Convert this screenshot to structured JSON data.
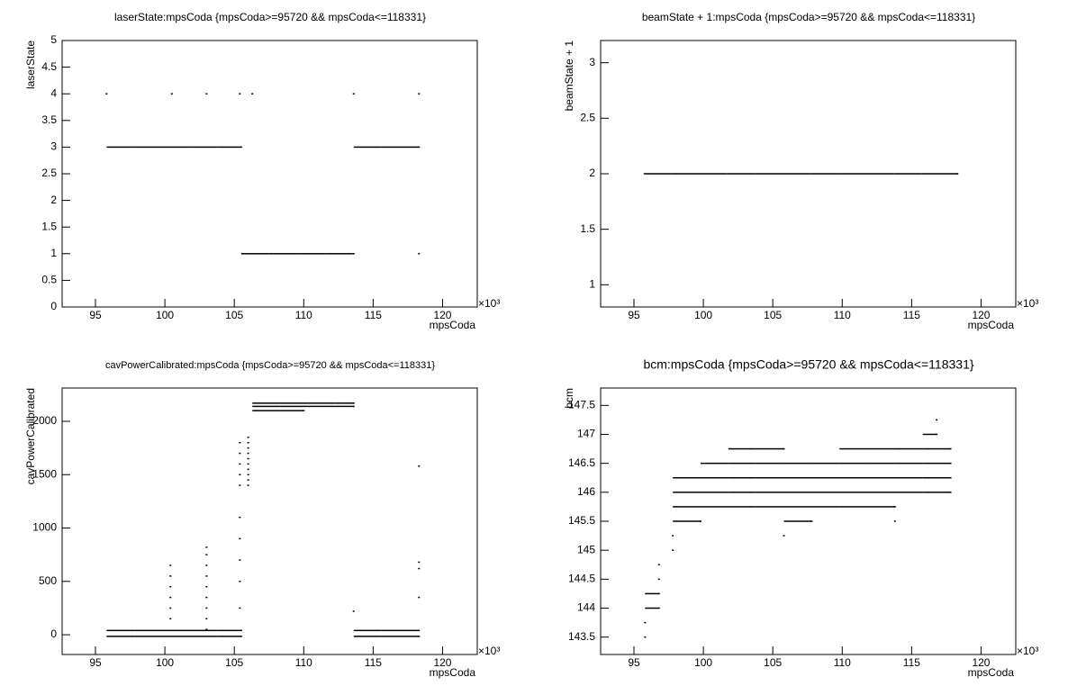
{
  "chart_data": [
    {
      "type": "scatter",
      "title": "laserState:mpsCoda {mpsCoda>=95720 && mpsCoda<=118331}",
      "x_label": "mpsCoda",
      "y_label": "laserState",
      "x_exponent": "×10³",
      "color": "#000000",
      "xlim": [
        92.6,
        122.5
      ],
      "xticks": [
        95,
        100,
        105,
        110,
        115,
        120
      ],
      "ylim": [
        0,
        5
      ],
      "yticks": [
        0,
        0.5,
        1,
        1.5,
        2,
        2.5,
        3,
        3.5,
        4,
        4.5,
        5
      ],
      "x": [
        95.8,
        97.8,
        99.8,
        101.8,
        103.8,
        105.5,
        105.5,
        107.5,
        109.5,
        111.5,
        113.5,
        113.6,
        113.6,
        115.6,
        117.6,
        118.3,
        95.8,
        100.5,
        103,
        105.4,
        118.3,
        106.3,
        113.6,
        118.3
      ],
      "values": [
        3,
        3,
        3,
        3,
        3,
        3,
        1,
        1,
        1,
        1,
        1,
        1,
        3,
        3,
        3,
        3,
        4,
        4,
        4,
        4,
        1,
        4,
        4,
        4
      ]
    },
    {
      "type": "scatter",
      "title": "beamState + 1:mpsCoda {mpsCoda>=95720 && mpsCoda<=118331}",
      "x_label": "mpsCoda",
      "y_label": "beamState + 1",
      "x_exponent": "×10³",
      "color": "#000000",
      "xlim": [
        92.6,
        122.5
      ],
      "xticks": [
        95,
        100,
        105,
        110,
        115,
        120
      ],
      "ylim": [
        0.8,
        3.2
      ],
      "yticks": [
        1,
        1.5,
        2,
        2.5,
        3
      ],
      "x": [
        95.7,
        97.7,
        99.7,
        101.7,
        103.7,
        105.7,
        107.7,
        109.7,
        111.7,
        113.7,
        115.7,
        117.7,
        118.3
      ],
      "values": [
        2,
        2,
        2,
        2,
        2,
        2,
        2,
        2,
        2,
        2,
        2,
        2,
        2
      ]
    },
    {
      "type": "scatter",
      "title": "cavPowerCalibrated:mpsCoda {mpsCoda>=95720 && mpsCoda<=118331}",
      "x_label": "mpsCoda",
      "y_label": "cavPowerCalibrated",
      "x_exponent": "×10³",
      "color": "#000000",
      "xlim": [
        92.6,
        122.5
      ],
      "xticks": [
        95,
        100,
        105,
        110,
        115,
        120
      ],
      "ylim": [
        -185,
        2312
      ],
      "yticks": [
        0,
        500,
        1000,
        1500,
        2000
      ],
      "x": [
        95.8,
        97.8,
        99.8,
        101.8,
        103.8,
        105.5,
        95.8,
        97.8,
        99.8,
        101.8,
        103.8,
        105.5,
        113.6,
        115.6,
        117.6,
        118.3,
        113.6,
        115.6,
        117.6,
        118.3,
        106.3,
        108.3,
        110.3,
        112.3,
        113.6,
        106.3,
        108.3,
        110.3,
        112.3,
        113.6,
        106.3,
        108.3,
        110,
        100.4,
        100.4,
        100.4,
        100.4,
        100.4,
        100.4,
        103,
        103,
        103,
        103,
        103,
        103,
        103,
        103,
        103,
        105.4,
        105.4,
        105.4,
        105.4,
        105.4,
        105.4,
        105.4,
        105.4,
        105.4,
        105.4,
        106,
        106,
        106,
        106,
        106,
        106,
        106,
        106,
        106,
        106,
        113.6,
        118.3,
        118.3,
        118.3,
        118.3
      ],
      "values": [
        40,
        40,
        40,
        40,
        40,
        40,
        -15,
        -15,
        -15,
        -15,
        -15,
        -15,
        40,
        40,
        40,
        40,
        -15,
        -15,
        -15,
        -15,
        2170,
        2170,
        2170,
        2170,
        2170,
        2140,
        2140,
        2140,
        2140,
        2140,
        2100,
        2100,
        2100,
        150,
        250,
        350,
        450,
        550,
        650,
        50,
        150,
        250,
        350,
        450,
        550,
        650,
        750,
        820,
        250,
        500,
        700,
        900,
        1100,
        1400,
        1500,
        1600,
        1700,
        1800,
        1400,
        1450,
        1500,
        1550,
        1600,
        1650,
        1700,
        1750,
        1800,
        1850,
        220,
        350,
        620,
        680,
        1580
      ]
    },
    {
      "type": "scatter",
      "title": "bcm:mpsCoda {mpsCoda>=95720 && mpsCoda<=118331}",
      "x_label": "mpsCoda",
      "y_label": "bcm",
      "x_exponent": "×10³",
      "color": "#000000",
      "xlim": [
        92.6,
        122.5
      ],
      "xticks": [
        95,
        100,
        105,
        110,
        115,
        120
      ],
      "ylim": [
        143.2,
        147.8
      ],
      "yticks": [
        143.5,
        144,
        144.5,
        145,
        145.5,
        146,
        146.5,
        147,
        147.5
      ],
      "x": [
        95.8,
        95.8,
        95.8,
        96.8,
        95.8,
        96.8,
        96.8,
        96.8,
        97.8,
        97.8,
        105.8,
        97.8,
        99.8,
        105.8,
        107.8,
        113.8,
        97.8,
        99.8,
        101.8,
        103.8,
        105.8,
        107.8,
        109.8,
        111.8,
        113.8,
        97.8,
        99.8,
        101.8,
        103.8,
        105.8,
        107.8,
        109.8,
        111.8,
        113.8,
        115.8,
        117.8,
        97.8,
        99.8,
        101.8,
        103.8,
        105.8,
        107.8,
        109.8,
        111.8,
        113.8,
        115.8,
        117.8,
        99.8,
        101.8,
        103.8,
        105.8,
        107.8,
        109.8,
        111.8,
        113.8,
        115.8,
        117.8,
        101.8,
        103.8,
        105.8,
        109.8,
        111.8,
        113.8,
        115.8,
        117.8,
        115.8,
        116.8,
        116.8
      ],
      "values": [
        143.5,
        143.75,
        144,
        144,
        144.25,
        144.25,
        144.5,
        144.75,
        145,
        145.25,
        145.25,
        145.5,
        145.5,
        145.5,
        145.5,
        145.5,
        145.75,
        145.75,
        145.75,
        145.75,
        145.75,
        145.75,
        145.75,
        145.75,
        145.75,
        146,
        146,
        146,
        146,
        146,
        146,
        146,
        146,
        146,
        146,
        146,
        146.25,
        146.25,
        146.25,
        146.25,
        146.25,
        146.25,
        146.25,
        146.25,
        146.25,
        146.25,
        146.25,
        146.5,
        146.5,
        146.5,
        146.5,
        146.5,
        146.5,
        146.5,
        146.5,
        146.5,
        146.5,
        146.75,
        146.75,
        146.75,
        146.75,
        146.75,
        146.75,
        146.75,
        146.75,
        147,
        147,
        147.25
      ]
    }
  ]
}
